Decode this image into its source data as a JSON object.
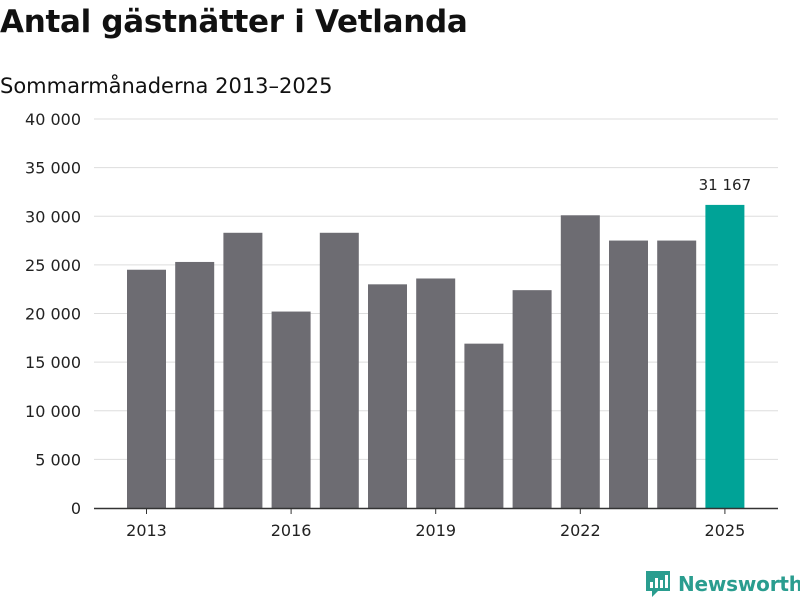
{
  "header": {
    "title": "Antal gästnätter i Vetlanda",
    "subtitle": "Sommarmånaderna 2013–2025"
  },
  "brand": {
    "name": "Newsworthy",
    "icon": "newsworthy-logo-icon",
    "color": "#2a9d8f"
  },
  "colors": {
    "bar": "#6d6c72",
    "highlight": "#00a397",
    "grid": "#dddddd",
    "axis": "#333333"
  },
  "chart_data": {
    "type": "bar",
    "title": "Antal gästnätter i Vetlanda",
    "subtitle": "Sommarmånaderna 2013–2025",
    "xlabel": "",
    "ylabel": "",
    "categories": [
      "2013",
      "2014",
      "2015",
      "2016",
      "2017",
      "2018",
      "2019",
      "2020",
      "2021",
      "2022",
      "2023",
      "2024",
      "2025"
    ],
    "values": [
      24500,
      25300,
      28300,
      20200,
      28300,
      23000,
      23600,
      16900,
      22400,
      30100,
      27500,
      27500,
      31167
    ],
    "ylim": [
      0,
      40000
    ],
    "y_ticks": [
      {
        "value": 0,
        "label": "0"
      },
      {
        "value": 5000,
        "label": "5 000"
      },
      {
        "value": 10000,
        "label": "10 000"
      },
      {
        "value": 15000,
        "label": "15 000"
      },
      {
        "value": 20000,
        "label": "20 000"
      },
      {
        "value": 25000,
        "label": "25 000"
      },
      {
        "value": 30000,
        "label": "30 000"
      },
      {
        "value": 35000,
        "label": "35 000"
      },
      {
        "value": 40000,
        "label": "40 000"
      }
    ],
    "x_tick_labels": [
      "2013",
      "2016",
      "2019",
      "2022",
      "2025"
    ],
    "highlight_index": 12,
    "data_labels": [
      {
        "index": 12,
        "text": "31 167"
      }
    ],
    "grid": true
  }
}
